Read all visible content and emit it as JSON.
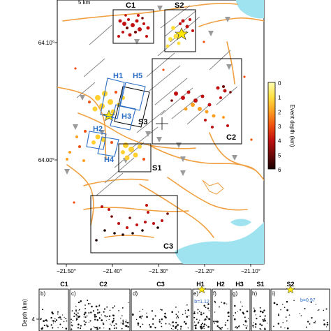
{
  "map": {
    "scale_label": "5 km",
    "lat_labels": [
      "64.10°",
      "64.00°"
    ],
    "lon_labels": [
      "−21.50°",
      "−21.40°",
      "−21.30°",
      "−21.20°",
      "−21.10°"
    ],
    "region_boxes": {
      "C1": "C1",
      "S2": "S2",
      "C2": "C2",
      "S3": "S3",
      "S1": "S1",
      "C3": "C3"
    },
    "blue_boxes": {
      "H1": "H1",
      "H5": "H5",
      "H3": "H3",
      "H2": "H2",
      "H4": "H4"
    },
    "colors": {
      "road": "#f0a040",
      "water": "#9fe3f0",
      "fault": "#808080",
      "region_box": "#000000",
      "blue_box": "#2b6cc4",
      "star": "#ffe600"
    }
  },
  "colorbar": {
    "title": "Event depth (km)",
    "ticks": [
      "0",
      "1",
      "2",
      "3",
      "4",
      "5",
      "6"
    ],
    "colors": [
      "#ffffb0",
      "#ffe040",
      "#ffa020",
      "#f05010",
      "#c01010",
      "#700808",
      "#1a0000"
    ]
  },
  "depth_panels": {
    "ylabel": "Depth (km)",
    "ytick": "4",
    "panels": [
      {
        "letter": "b)",
        "name": "C1"
      },
      {
        "letter": "c)",
        "name": "C2"
      },
      {
        "letter": "d)",
        "name": "C3"
      },
      {
        "letter": "e)",
        "name": "H1",
        "annotation": "b=1.12"
      },
      {
        "letter": "f)",
        "name": "H2"
      },
      {
        "letter": "g)",
        "name": "H3"
      },
      {
        "letter": "h)",
        "name": "S1"
      },
      {
        "letter": "i)",
        "name": "S2",
        "annotation": "b=0.97"
      }
    ]
  }
}
